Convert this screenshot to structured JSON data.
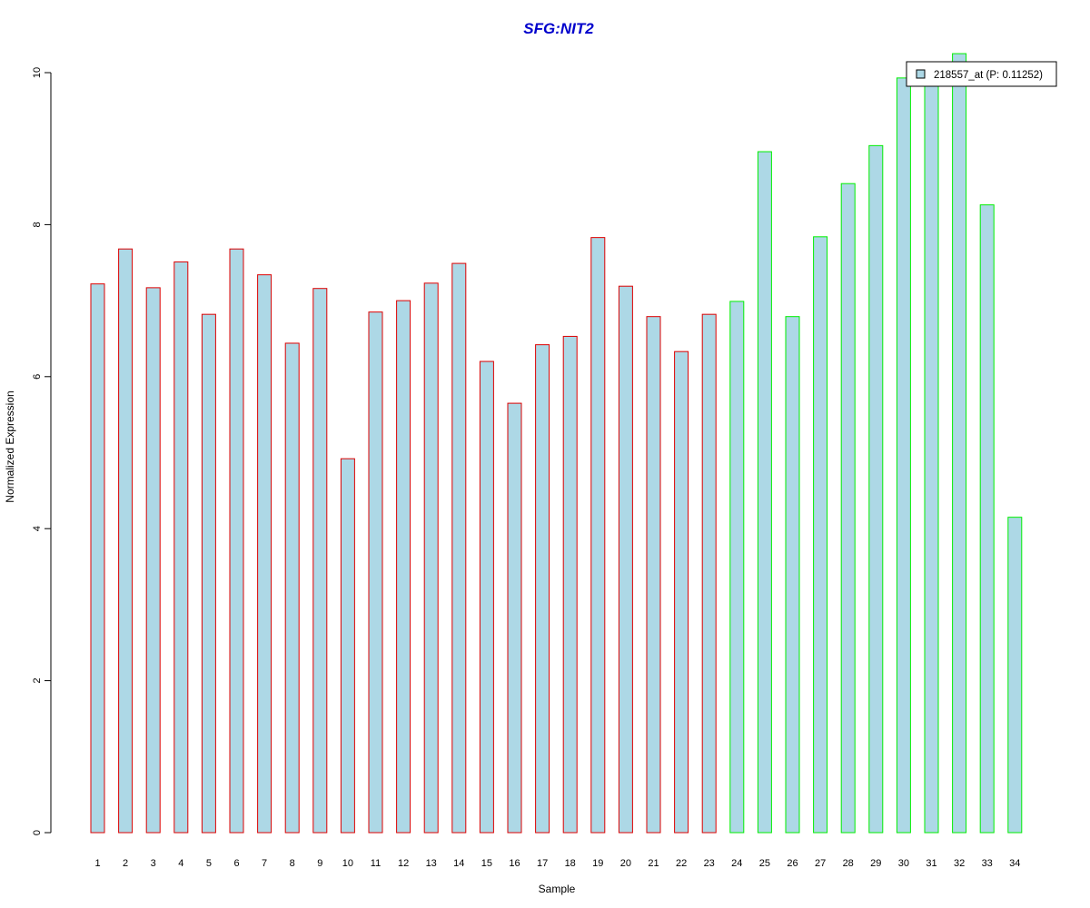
{
  "chart_data": {
    "type": "bar",
    "title": "SFG:NIT2",
    "xlabel": "Sample",
    "ylabel": "Normalized Expression",
    "ylim": [
      0,
      10.3
    ],
    "yticks": [
      0,
      2,
      4,
      6,
      8,
      10
    ],
    "grid": false,
    "legend_position": "top-right",
    "categories": [
      "1",
      "2",
      "3",
      "4",
      "5",
      "6",
      "7",
      "8",
      "9",
      "10",
      "11",
      "12",
      "13",
      "14",
      "15",
      "16",
      "17",
      "18",
      "19",
      "20",
      "21",
      "22",
      "23",
      "24",
      "25",
      "26",
      "27",
      "28",
      "29",
      "30",
      "31",
      "32",
      "33",
      "34"
    ],
    "series": [
      {
        "name": "218557_at (P: 0.11252)",
        "values": [
          7.22,
          7.68,
          7.17,
          7.51,
          6.82,
          7.68,
          7.34,
          6.44,
          7.16,
          4.92,
          6.85,
          7.0,
          7.23,
          7.49,
          6.2,
          5.65,
          6.42,
          6.53,
          7.83,
          7.19,
          6.79,
          6.33,
          6.82,
          6.99,
          8.96,
          6.79,
          7.84,
          8.54,
          9.04,
          9.93,
          9.87,
          10.25,
          8.26,
          4.15
        ]
      }
    ],
    "groups": [
      "red",
      "red",
      "red",
      "red",
      "red",
      "red",
      "red",
      "red",
      "red",
      "red",
      "red",
      "red",
      "red",
      "red",
      "red",
      "red",
      "red",
      "red",
      "red",
      "red",
      "red",
      "red",
      "red",
      "green",
      "green",
      "green",
      "green",
      "green",
      "green",
      "green",
      "green",
      "green",
      "green",
      "green"
    ],
    "colors": {
      "bar_fill": "#add8e6",
      "group_red": "#dd0000",
      "group_green": "#00ee00",
      "title": "#0000cc",
      "axis": "#000000"
    }
  }
}
